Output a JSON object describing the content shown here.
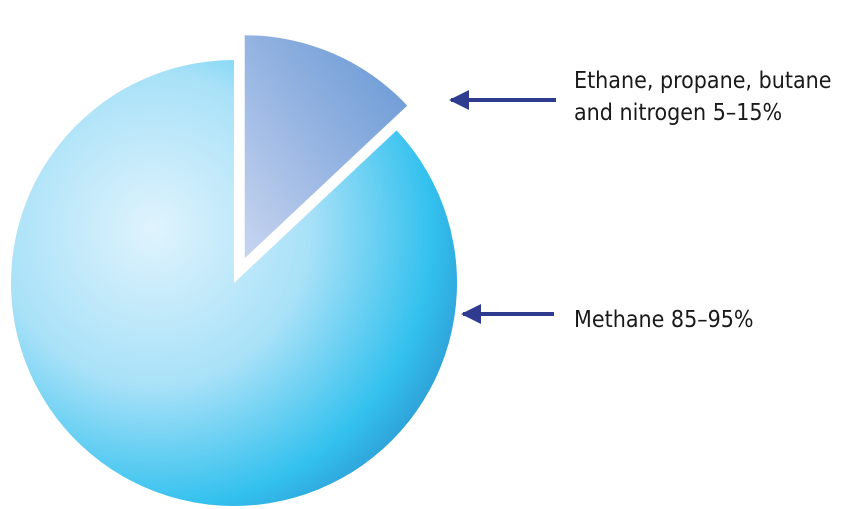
{
  "chart_data": {
    "type": "pie",
    "title": "",
    "slices": [
      {
        "label_lines": [
          "Methane 85–95%"
        ],
        "value": 87,
        "exploded": false
      },
      {
        "label_lines": [
          "Ethane, propane, butane",
          "and nitrogen 5–15%"
        ],
        "value": 13,
        "exploded": true
      }
    ],
    "legend": "none",
    "annotations": "arrows pointing to slices"
  },
  "colors": {
    "methane_light": "#d7effc",
    "methane_mid": "#5ccaf0",
    "methane_edge": "#2ea9dc",
    "minor_light": "#c7d6f1",
    "minor_dark": "#6c9bd6",
    "arrow": "#2e3b8f"
  }
}
